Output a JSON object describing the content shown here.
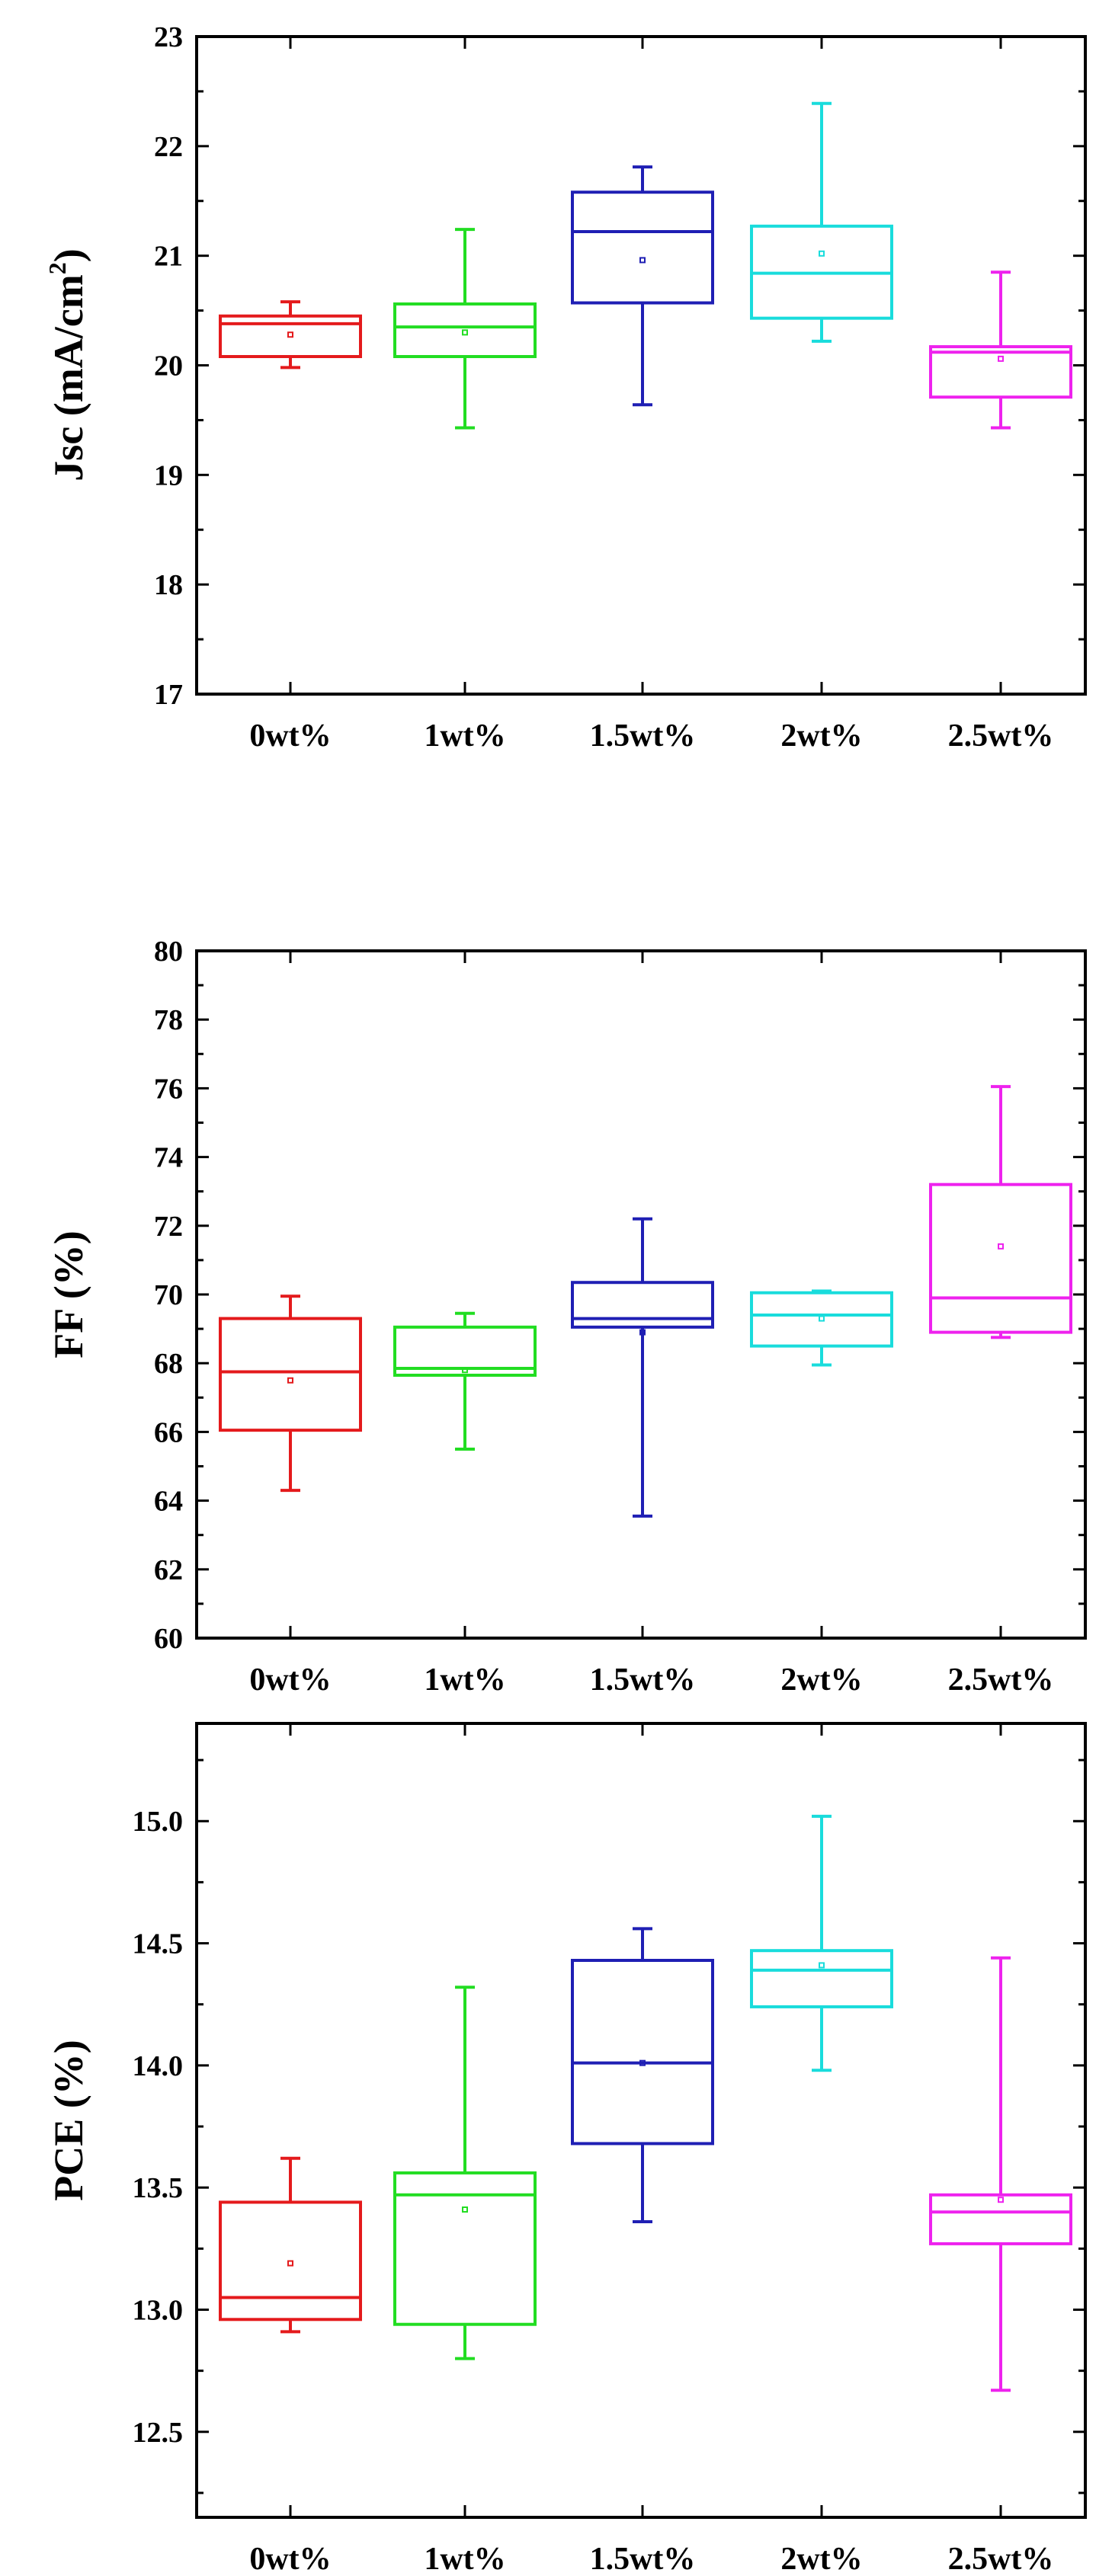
{
  "chart_data": [
    {
      "type": "box",
      "ylabel": "Jsc (mA/cm²)",
      "ylabel_parts": [
        "Jsc (mA/cm",
        "2",
        ")"
      ],
      "ylim": [
        17,
        23
      ],
      "yticks": [
        17,
        18,
        19,
        20,
        21,
        22,
        23
      ],
      "tick_decimals": 0,
      "categories": [
        "0wt%",
        "1wt%",
        "1.5wt%",
        "2wt%",
        "2.5wt%"
      ],
      "colors": [
        "#e41a1c",
        "#22dd22",
        "#1f1fb4",
        "#19dcdc",
        "#ee22ee"
      ],
      "boxes": [
        {
          "whisker_low": 19.98,
          "q1": 20.08,
          "median": 20.38,
          "q3": 20.45,
          "whisker_high": 20.58,
          "mean": 20.28
        },
        {
          "whisker_low": 19.43,
          "q1": 20.08,
          "median": 20.35,
          "q3": 20.56,
          "whisker_high": 21.24,
          "mean": 20.3
        },
        {
          "whisker_low": 19.64,
          "q1": 20.57,
          "median": 21.22,
          "q3": 21.58,
          "whisker_high": 21.81,
          "mean": 20.96
        },
        {
          "whisker_low": 20.22,
          "q1": 20.43,
          "median": 20.84,
          "q3": 21.27,
          "whisker_high": 22.39,
          "mean": 21.02
        },
        {
          "whisker_low": 19.43,
          "q1": 19.71,
          "median": 20.12,
          "q3": 20.17,
          "whisker_high": 20.85,
          "mean": 20.06
        }
      ]
    },
    {
      "type": "box",
      "ylabel": "FF (%)",
      "ylim": [
        60,
        80
      ],
      "yticks": [
        60,
        62,
        64,
        66,
        68,
        70,
        72,
        74,
        76,
        78,
        80
      ],
      "tick_decimals": 0,
      "categories": [
        "0wt%",
        "1wt%",
        "1.5wt%",
        "2wt%",
        "2.5wt%"
      ],
      "colors": [
        "#e41a1c",
        "#22dd22",
        "#1f1fb4",
        "#19dcdc",
        "#ee22ee"
      ],
      "boxes": [
        {
          "whisker_low": 64.3,
          "q1": 66.05,
          "median": 67.75,
          "q3": 69.3,
          "whisker_high": 69.95,
          "mean": 67.5
        },
        {
          "whisker_low": 65.5,
          "q1": 67.65,
          "median": 67.85,
          "q3": 69.05,
          "whisker_high": 69.45,
          "mean": 67.8
        },
        {
          "whisker_low": 63.55,
          "q1": 69.05,
          "median": 69.3,
          "q3": 70.35,
          "whisker_high": 72.2,
          "mean": 68.9
        },
        {
          "whisker_low": 67.95,
          "q1": 68.5,
          "median": 69.4,
          "q3": 70.05,
          "whisker_high": 70.1,
          "mean": 69.3
        },
        {
          "whisker_low": 68.75,
          "q1": 68.9,
          "median": 69.9,
          "q3": 73.2,
          "whisker_high": 76.05,
          "mean": 71.4
        }
      ]
    },
    {
      "type": "box",
      "ylabel": "PCE (%)",
      "ylim": [
        12.15,
        15.4
      ],
      "yticks": [
        12.5,
        13.0,
        13.5,
        14.0,
        14.5,
        15.0
      ],
      "tick_decimals": 1,
      "categories": [
        "0wt%",
        "1wt%",
        "1.5wt%",
        "2wt%",
        "2.5wt%"
      ],
      "colors": [
        "#e41a1c",
        "#22dd22",
        "#1f1fb4",
        "#19dcdc",
        "#ee22ee"
      ],
      "boxes": [
        {
          "whisker_low": 12.91,
          "q1": 12.96,
          "median": 13.05,
          "q3": 13.44,
          "whisker_high": 13.62,
          "mean": 13.19
        },
        {
          "whisker_low": 12.8,
          "q1": 12.94,
          "median": 13.47,
          "q3": 13.56,
          "whisker_high": 14.32,
          "mean": 13.41
        },
        {
          "whisker_low": 13.36,
          "q1": 13.68,
          "median": 14.01,
          "q3": 14.43,
          "whisker_high": 14.56,
          "mean": 14.01
        },
        {
          "whisker_low": 13.98,
          "q1": 14.24,
          "median": 14.39,
          "q3": 14.47,
          "whisker_high": 15.02,
          "mean": 14.41
        },
        {
          "whisker_low": 12.67,
          "q1": 13.27,
          "median": 13.4,
          "q3": 13.47,
          "whisker_high": 14.44,
          "mean": 13.45
        }
      ]
    }
  ]
}
